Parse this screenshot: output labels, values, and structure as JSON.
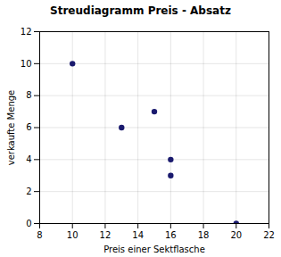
{
  "chart_data": {
    "type": "scatter",
    "title": "Streudiagramm Preis - Absatz",
    "xlabel": "Preis einer Sektflasche",
    "ylabel": "verkaufte Menge",
    "x": [
      10,
      13,
      15,
      16,
      16,
      20
    ],
    "values": [
      10,
      6,
      7,
      4,
      3,
      0
    ],
    "color": "#1a1a6e",
    "xlim": [
      8,
      22
    ],
    "ylim": [
      0,
      12
    ],
    "xticks": [
      8,
      10,
      12,
      14,
      16,
      18,
      20,
      22
    ],
    "yticks": [
      0,
      2,
      4,
      6,
      8,
      10,
      12
    ],
    "grid": true
  }
}
